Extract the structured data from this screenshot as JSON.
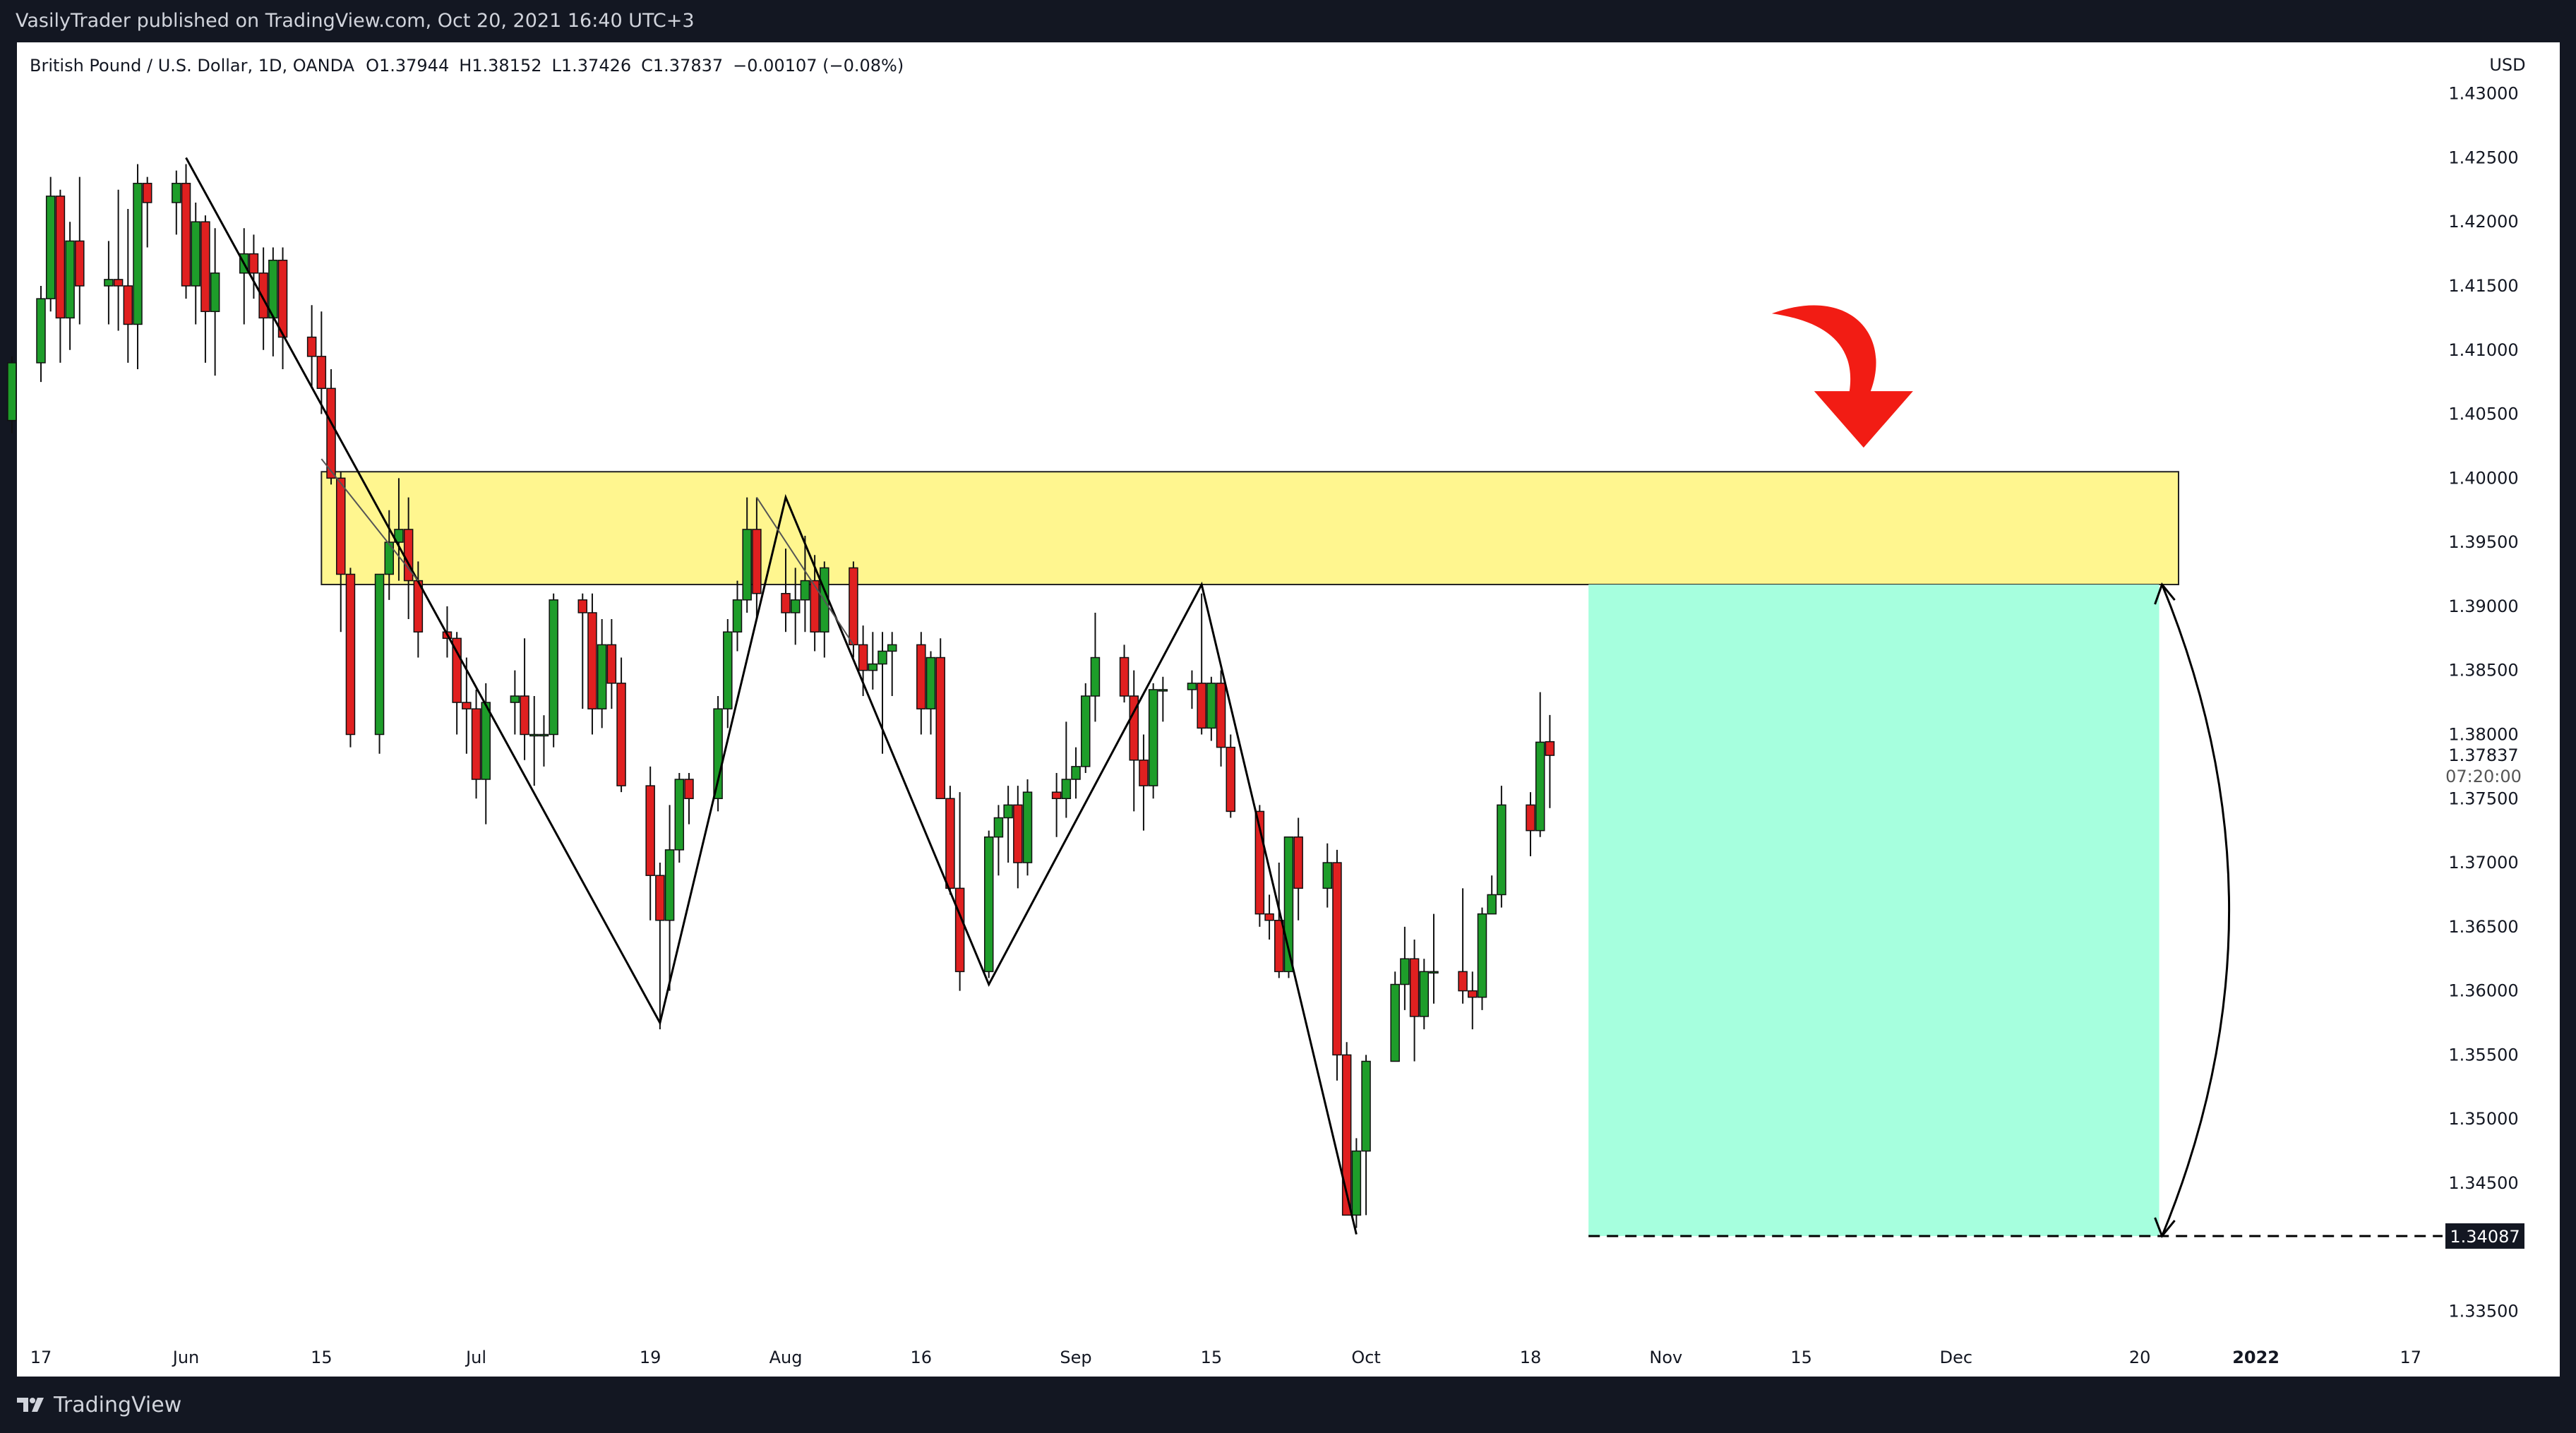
{
  "header": {
    "publisher": "VasilyTrader published on TradingView.com, Oct 20, 2021 16:40 UTC+3",
    "symbol_info": "British Pound / U.S. Dollar, 1D, OANDA",
    "open": "O1.37944",
    "high": "H1.38152",
    "low": "L1.37426",
    "close": "C1.37837",
    "change": "−0.00107 (−0.08%)"
  },
  "footer": {
    "brand": "TradingView"
  },
  "colors": {
    "up": "#1e9d2a",
    "down": "#e02020",
    "zone_fill": "#fff68f",
    "target_fill": "#a6ffde",
    "arrow": "#f21c14",
    "line": "#000000",
    "axis_text": "#131722"
  },
  "chart_data": {
    "type": "candlestick",
    "title": "British Pound / U.S. Dollar, 1D, OANDA",
    "currency": "USD",
    "ylim": [
      1.332,
      1.434
    ],
    "y_ticks": [
      "1.43000",
      "1.42500",
      "1.42000",
      "1.41500",
      "1.41000",
      "1.40500",
      "1.40000",
      "1.39500",
      "1.39000",
      "1.38500",
      "1.38000",
      "1.37500",
      "1.37000",
      "1.36500",
      "1.36000",
      "1.35500",
      "1.35000",
      "1.34500",
      "1.33500"
    ],
    "current_price": "1.37837",
    "countdown": "07:20:00",
    "target_price": "1.34087",
    "x_ticks": [
      {
        "label": "17",
        "date": "2021-05-17"
      },
      {
        "label": "Jun",
        "date": "2021-06-01"
      },
      {
        "label": "15",
        "date": "2021-06-15"
      },
      {
        "label": "Jul",
        "date": "2021-07-01"
      },
      {
        "label": "19",
        "date": "2021-07-19"
      },
      {
        "label": "Aug",
        "date": "2021-08-02"
      },
      {
        "label": "16",
        "date": "2021-08-16"
      },
      {
        "label": "Sep",
        "date": "2021-09-01"
      },
      {
        "label": "15",
        "date": "2021-09-15"
      },
      {
        "label": "Oct",
        "date": "2021-10-01"
      },
      {
        "label": "18",
        "date": "2021-10-18"
      },
      {
        "label": "Nov",
        "date": "2021-11-01"
      },
      {
        "label": "15",
        "date": "2021-11-15"
      },
      {
        "label": "Dec",
        "date": "2021-12-01"
      },
      {
        "label": "20",
        "date": "2021-12-20"
      },
      {
        "label": "2022",
        "date": "2022-01-01"
      },
      {
        "label": "17",
        "date": "2022-01-17"
      }
    ],
    "candles": [
      [
        "2021-05-14",
        1.4045,
        1.4095,
        1.4035,
        1.409
      ],
      [
        "2021-05-17",
        1.409,
        1.415,
        1.4075,
        1.414
      ],
      [
        "2021-05-18",
        1.414,
        1.4235,
        1.413,
        1.422
      ],
      [
        "2021-05-19",
        1.422,
        1.4225,
        1.409,
        1.4125
      ],
      [
        "2021-05-20",
        1.4125,
        1.42,
        1.41,
        1.4185
      ],
      [
        "2021-05-21",
        1.4185,
        1.4235,
        1.412,
        1.415
      ],
      [
        "2021-05-24",
        1.415,
        1.4185,
        1.412,
        1.4155
      ],
      [
        "2021-05-25",
        1.4155,
        1.4225,
        1.4115,
        1.415
      ],
      [
        "2021-05-26",
        1.415,
        1.421,
        1.409,
        1.412
      ],
      [
        "2021-05-27",
        1.412,
        1.4245,
        1.4085,
        1.423
      ],
      [
        "2021-05-28",
        1.423,
        1.4235,
        1.418,
        1.4215
      ],
      [
        "2021-05-31",
        1.4215,
        1.424,
        1.419,
        1.423
      ],
      [
        "2021-06-01",
        1.423,
        1.4245,
        1.414,
        1.415
      ],
      [
        "2021-06-02",
        1.415,
        1.4215,
        1.412,
        1.42
      ],
      [
        "2021-06-03",
        1.42,
        1.4205,
        1.409,
        1.413
      ],
      [
        "2021-06-04",
        1.413,
        1.4195,
        1.408,
        1.416
      ],
      [
        "2021-06-07",
        1.416,
        1.4195,
        1.412,
        1.4175
      ],
      [
        "2021-06-08",
        1.4175,
        1.419,
        1.414,
        1.416
      ],
      [
        "2021-06-09",
        1.416,
        1.418,
        1.41,
        1.4125
      ],
      [
        "2021-06-10",
        1.4125,
        1.418,
        1.4095,
        1.417
      ],
      [
        "2021-06-11",
        1.417,
        1.418,
        1.4085,
        1.411
      ],
      [
        "2021-06-14",
        1.411,
        1.4135,
        1.407,
        1.4095
      ],
      [
        "2021-06-15",
        1.4095,
        1.413,
        1.405,
        1.407
      ],
      [
        "2021-06-16",
        1.407,
        1.4085,
        1.3995,
        1.4
      ],
      [
        "2021-06-17",
        1.4,
        1.4005,
        1.388,
        1.3925
      ],
      [
        "2021-06-18",
        1.3925,
        1.393,
        1.379,
        1.38
      ],
      [
        "2021-06-21",
        1.38,
        1.3925,
        1.3785,
        1.3925
      ],
      [
        "2021-06-22",
        1.3925,
        1.3975,
        1.3905,
        1.395
      ],
      [
        "2021-06-23",
        1.395,
        1.4,
        1.392,
        1.396
      ],
      [
        "2021-06-24",
        1.396,
        1.3985,
        1.389,
        1.392
      ],
      [
        "2021-06-25",
        1.392,
        1.3935,
        1.386,
        1.388
      ],
      [
        "2021-06-28",
        1.388,
        1.39,
        1.386,
        1.3875
      ],
      [
        "2021-06-29",
        1.3875,
        1.388,
        1.38,
        1.3825
      ],
      [
        "2021-06-30",
        1.3825,
        1.386,
        1.3785,
        1.382
      ],
      [
        "2021-07-01",
        1.382,
        1.3835,
        1.375,
        1.3765
      ],
      [
        "2021-07-02",
        1.3765,
        1.384,
        1.373,
        1.3825
      ],
      [
        "2021-07-05",
        1.3825,
        1.385,
        1.38,
        1.383
      ],
      [
        "2021-07-06",
        1.383,
        1.3875,
        1.378,
        1.38
      ],
      [
        "2021-07-07",
        1.38,
        1.383,
        1.376,
        1.38
      ],
      [
        "2021-07-08",
        1.38,
        1.3815,
        1.3775,
        1.38
      ],
      [
        "2021-07-09",
        1.38,
        1.391,
        1.379,
        1.3905
      ],
      [
        "2021-07-12",
        1.3905,
        1.391,
        1.382,
        1.3895
      ],
      [
        "2021-07-13",
        1.3895,
        1.391,
        1.38,
        1.382
      ],
      [
        "2021-07-14",
        1.382,
        1.389,
        1.3805,
        1.387
      ],
      [
        "2021-07-15",
        1.387,
        1.389,
        1.382,
        1.384
      ],
      [
        "2021-07-16",
        1.384,
        1.386,
        1.3755,
        1.376
      ],
      [
        "2021-07-19",
        1.376,
        1.3775,
        1.3655,
        1.369
      ],
      [
        "2021-07-20",
        1.369,
        1.37,
        1.357,
        1.3655
      ],
      [
        "2021-07-21",
        1.3655,
        1.3745,
        1.36,
        1.371
      ],
      [
        "2021-07-22",
        1.371,
        1.377,
        1.37,
        1.3765
      ],
      [
        "2021-07-23",
        1.3765,
        1.377,
        1.373,
        1.375
      ],
      [
        "2021-07-26",
        1.375,
        1.383,
        1.374,
        1.382
      ],
      [
        "2021-07-27",
        1.382,
        1.389,
        1.3805,
        1.388
      ],
      [
        "2021-07-28",
        1.388,
        1.392,
        1.3865,
        1.3905
      ],
      [
        "2021-07-29",
        1.3905,
        1.3985,
        1.3895,
        1.396
      ],
      [
        "2021-07-30",
        1.396,
        1.3985,
        1.389,
        1.391
      ],
      [
        "2021-08-02",
        1.391,
        1.3945,
        1.388,
        1.3895
      ],
      [
        "2021-08-03",
        1.3895,
        1.393,
        1.387,
        1.3905
      ],
      [
        "2021-08-04",
        1.3905,
        1.3955,
        1.388,
        1.392
      ],
      [
        "2021-08-05",
        1.392,
        1.394,
        1.3865,
        1.388
      ],
      [
        "2021-08-06",
        1.388,
        1.3935,
        1.386,
        1.393
      ],
      [
        "2021-08-09",
        1.393,
        1.3935,
        1.386,
        1.387
      ],
      [
        "2021-08-10",
        1.387,
        1.3885,
        1.383,
        1.385
      ],
      [
        "2021-08-11",
        1.385,
        1.388,
        1.3835,
        1.3855
      ],
      [
        "2021-08-12",
        1.3855,
        1.388,
        1.3785,
        1.3865
      ],
      [
        "2021-08-13",
        1.3865,
        1.388,
        1.383,
        1.387
      ],
      [
        "2021-08-16",
        1.387,
        1.388,
        1.38,
        1.382
      ],
      [
        "2021-08-17",
        1.382,
        1.3865,
        1.38,
        1.386
      ],
      [
        "2021-08-18",
        1.386,
        1.3875,
        1.375,
        1.375
      ],
      [
        "2021-08-19",
        1.375,
        1.376,
        1.3675,
        1.368
      ],
      [
        "2021-08-20",
        1.368,
        1.3755,
        1.36,
        1.3615
      ],
      [
        "2021-08-23",
        1.3615,
        1.3725,
        1.361,
        1.372
      ],
      [
        "2021-08-24",
        1.372,
        1.3745,
        1.369,
        1.3735
      ],
      [
        "2021-08-25",
        1.3735,
        1.376,
        1.37,
        1.3745
      ],
      [
        "2021-08-26",
        1.3745,
        1.376,
        1.368,
        1.37
      ],
      [
        "2021-08-27",
        1.37,
        1.3765,
        1.369,
        1.3755
      ],
      [
        "2021-08-30",
        1.3755,
        1.377,
        1.372,
        1.375
      ],
      [
        "2021-08-31",
        1.375,
        1.381,
        1.3735,
        1.3765
      ],
      [
        "2021-09-01",
        1.3765,
        1.379,
        1.375,
        1.3775
      ],
      [
        "2021-09-02",
        1.3775,
        1.384,
        1.377,
        1.383
      ],
      [
        "2021-09-03",
        1.383,
        1.3895,
        1.381,
        1.386
      ],
      [
        "2021-09-06",
        1.386,
        1.387,
        1.3825,
        1.383
      ],
      [
        "2021-09-07",
        1.383,
        1.385,
        1.374,
        1.378
      ],
      [
        "2021-09-08",
        1.378,
        1.38,
        1.3725,
        1.376
      ],
      [
        "2021-09-09",
        1.376,
        1.384,
        1.375,
        1.3835
      ],
      [
        "2021-09-10",
        1.3835,
        1.3845,
        1.381,
        1.3835
      ],
      [
        "2021-09-13",
        1.3835,
        1.385,
        1.382,
        1.384
      ],
      [
        "2021-09-14",
        1.384,
        1.391,
        1.38,
        1.3805
      ],
      [
        "2021-09-15",
        1.3805,
        1.3845,
        1.3795,
        1.384
      ],
      [
        "2021-09-16",
        1.384,
        1.385,
        1.3775,
        1.379
      ],
      [
        "2021-09-17",
        1.379,
        1.38,
        1.3735,
        1.374
      ],
      [
        "2021-09-20",
        1.374,
        1.3745,
        1.365,
        1.366
      ],
      [
        "2021-09-21",
        1.366,
        1.3675,
        1.364,
        1.3655
      ],
      [
        "2021-09-22",
        1.3655,
        1.37,
        1.361,
        1.3615
      ],
      [
        "2021-09-23",
        1.3615,
        1.372,
        1.361,
        1.372
      ],
      [
        "2021-09-24",
        1.372,
        1.3735,
        1.3655,
        1.368
      ],
      [
        "2021-09-27",
        1.368,
        1.3715,
        1.3665,
        1.37
      ],
      [
        "2021-09-28",
        1.37,
        1.371,
        1.353,
        1.355
      ],
      [
        "2021-09-29",
        1.355,
        1.356,
        1.343,
        1.3425
      ],
      [
        "2021-09-30",
        1.3425,
        1.3485,
        1.3415,
        1.3475
      ],
      [
        "2021-10-01",
        1.3475,
        1.355,
        1.3425,
        1.3545
      ],
      [
        "2021-10-04",
        1.3545,
        1.3615,
        1.3545,
        1.3605
      ],
      [
        "2021-10-05",
        1.3605,
        1.365,
        1.3585,
        1.3625
      ],
      [
        "2021-10-06",
        1.3625,
        1.364,
        1.3545,
        1.358
      ],
      [
        "2021-10-07",
        1.358,
        1.3625,
        1.357,
        1.3615
      ],
      [
        "2021-10-08",
        1.3615,
        1.366,
        1.359,
        1.3615
      ],
      [
        "2021-10-11",
        1.3615,
        1.368,
        1.359,
        1.36
      ],
      [
        "2021-10-12",
        1.36,
        1.3615,
        1.357,
        1.3595
      ],
      [
        "2021-10-13",
        1.3595,
        1.3665,
        1.3585,
        1.366
      ],
      [
        "2021-10-14",
        1.366,
        1.369,
        1.366,
        1.3675
      ],
      [
        "2021-10-15",
        1.3675,
        1.376,
        1.3665,
        1.3745
      ],
      [
        "2021-10-18",
        1.3745,
        1.3755,
        1.3705,
        1.3725
      ],
      [
        "2021-10-19",
        1.3725,
        1.3833,
        1.372,
        1.3794
      ],
      [
        "2021-10-20",
        1.37944,
        1.38152,
        1.37426,
        1.37837
      ]
    ],
    "drawings": {
      "zigzag": [
        [
          "2021-06-01",
          1.425
        ],
        [
          "2021-07-20",
          1.3575
        ],
        [
          "2021-08-02",
          1.3985
        ],
        [
          "2021-08-23",
          1.3605
        ],
        [
          "2021-09-14",
          1.3917
        ],
        [
          "2021-09-30",
          1.341
        ]
      ],
      "triangle_markers": [
        [
          [
            "2021-06-15",
            1.4015
          ],
          [
            "2021-06-25",
            1.392
          ]
        ],
        [
          [
            "2021-07-30",
            1.3985
          ],
          [
            "2021-08-09",
            1.387
          ]
        ]
      ],
      "resistance_zone": {
        "from": "2021-06-15",
        "to": "2021-12-24",
        "top": 1.4005,
        "bottom": 1.3917
      },
      "target_zone": {
        "from": "2021-10-24",
        "to": "2021-12-22",
        "top": 1.3917,
        "bottom": 1.34087
      },
      "dashed_target": {
        "from": "2021-10-24",
        "price": 1.34087
      },
      "curved_arrow": {
        "start": [
          "2021-12-22",
          1.34087
        ],
        "end": [
          "2021-12-22",
          1.3917
        ]
      },
      "red_arrow": {
        "anchor_date": "2021-11-21",
        "tip_price": 1.4015
      }
    }
  }
}
